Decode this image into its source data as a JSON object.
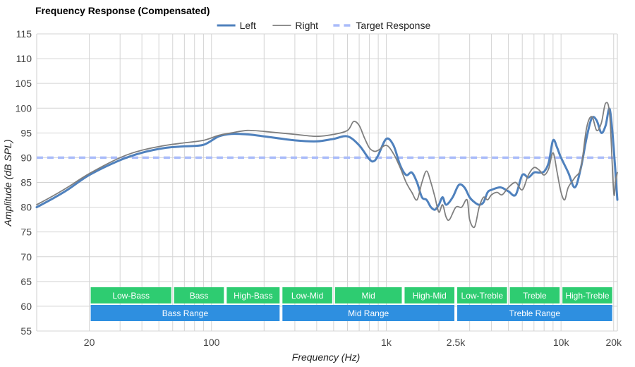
{
  "chart_data": {
    "type": "line",
    "title": "Frequency Response (Compensated)",
    "xlabel": "Frequency (Hz)",
    "ylabel": "Amplitude (dB SPL)",
    "xscale": "log",
    "xlim": [
      10,
      21000
    ],
    "ylim": [
      55,
      115
    ],
    "y_ticks": [
      "55",
      "60",
      "65",
      "70",
      "75",
      "80",
      "85",
      "90",
      "95",
      "100",
      "105",
      "110",
      "115"
    ],
    "x_ticks": [
      {
        "value": 20,
        "label": "20"
      },
      {
        "value": 100,
        "label": "100"
      },
      {
        "value": 1000,
        "label": "1k"
      },
      {
        "value": 2500,
        "label": "2.5k"
      },
      {
        "value": 10000,
        "label": "10k"
      },
      {
        "value": 20000,
        "label": "20k"
      }
    ],
    "grid": true,
    "legend_position": "top-center",
    "series": [
      {
        "name": "Left",
        "color": "#4f81bd",
        "style": "solid-thick",
        "points": [
          [
            10,
            80
          ],
          [
            12,
            81.5
          ],
          [
            15,
            83.5
          ],
          [
            20,
            86.5
          ],
          [
            30,
            89.5
          ],
          [
            40,
            91
          ],
          [
            55,
            92
          ],
          [
            70,
            92.3
          ],
          [
            90,
            92.6
          ],
          [
            110,
            94.3
          ],
          [
            130,
            94.8
          ],
          [
            160,
            94.7
          ],
          [
            200,
            94.3
          ],
          [
            300,
            93.5
          ],
          [
            400,
            93.3
          ],
          [
            500,
            93.8
          ],
          [
            600,
            94.3
          ],
          [
            700,
            92.5
          ],
          [
            800,
            89.7
          ],
          [
            850,
            89.3
          ],
          [
            900,
            90.5
          ],
          [
            1000,
            93.8
          ],
          [
            1100,
            92.5
          ],
          [
            1200,
            88.5
          ],
          [
            1300,
            86.5
          ],
          [
            1400,
            87
          ],
          [
            1500,
            85
          ],
          [
            1600,
            82
          ],
          [
            1700,
            81.5
          ],
          [
            1800,
            80
          ],
          [
            1900,
            79.5
          ],
          [
            2000,
            80.5
          ],
          [
            2100,
            82
          ],
          [
            2200,
            80.5
          ],
          [
            2400,
            82
          ],
          [
            2600,
            84.5
          ],
          [
            2800,
            84
          ],
          [
            3000,
            82
          ],
          [
            3200,
            81
          ],
          [
            3400,
            80.5
          ],
          [
            3600,
            81
          ],
          [
            3800,
            83
          ],
          [
            4000,
            83.5
          ],
          [
            4500,
            84
          ],
          [
            5000,
            83.2
          ],
          [
            5500,
            82.5
          ],
          [
            6000,
            86.5
          ],
          [
            6500,
            86
          ],
          [
            7000,
            87
          ],
          [
            7500,
            87
          ],
          [
            8000,
            87.2
          ],
          [
            8500,
            89
          ],
          [
            9000,
            93.5
          ],
          [
            9500,
            92
          ],
          [
            10000,
            90
          ],
          [
            11000,
            87
          ],
          [
            12000,
            84
          ],
          [
            13000,
            88
          ],
          [
            14000,
            94
          ],
          [
            15000,
            98
          ],
          [
            16000,
            97.5
          ],
          [
            17000,
            95
          ],
          [
            18000,
            96.5
          ],
          [
            19000,
            99.8
          ],
          [
            20000,
            92
          ],
          [
            21000,
            81.5
          ]
        ]
      },
      {
        "name": "Right",
        "color": "#7f7f7f",
        "style": "solid-thin",
        "points": [
          [
            10,
            80.5
          ],
          [
            12,
            82
          ],
          [
            15,
            84
          ],
          [
            20,
            86.8
          ],
          [
            30,
            90
          ],
          [
            40,
            91.5
          ],
          [
            55,
            92.5
          ],
          [
            70,
            93
          ],
          [
            90,
            93.5
          ],
          [
            110,
            94.5
          ],
          [
            130,
            95
          ],
          [
            160,
            95.5
          ],
          [
            200,
            95.3
          ],
          [
            300,
            94.7
          ],
          [
            400,
            94.3
          ],
          [
            500,
            94.7
          ],
          [
            600,
            95.5
          ],
          [
            650,
            97.3
          ],
          [
            700,
            96.5
          ],
          [
            750,
            94
          ],
          [
            800,
            92
          ],
          [
            850,
            91.3
          ],
          [
            900,
            91.5
          ],
          [
            1000,
            92.5
          ],
          [
            1100,
            90.8
          ],
          [
            1200,
            88
          ],
          [
            1300,
            85
          ],
          [
            1400,
            83
          ],
          [
            1500,
            81.5
          ],
          [
            1600,
            85
          ],
          [
            1700,
            87.3
          ],
          [
            1800,
            85
          ],
          [
            1900,
            82
          ],
          [
            2000,
            79
          ],
          [
            2100,
            80.5
          ],
          [
            2200,
            78
          ],
          [
            2300,
            77.5
          ],
          [
            2500,
            80
          ],
          [
            2700,
            80
          ],
          [
            2900,
            81.5
          ],
          [
            3000,
            77.5
          ],
          [
            3200,
            76
          ],
          [
            3400,
            80
          ],
          [
            3600,
            82
          ],
          [
            3800,
            81.5
          ],
          [
            4000,
            82.5
          ],
          [
            4300,
            83
          ],
          [
            4600,
            82.5
          ],
          [
            5000,
            84
          ],
          [
            5500,
            85
          ],
          [
            6000,
            83.5
          ],
          [
            6500,
            86.5
          ],
          [
            7000,
            88
          ],
          [
            7500,
            87.5
          ],
          [
            8000,
            86.5
          ],
          [
            8500,
            87.8
          ],
          [
            9000,
            91
          ],
          [
            9500,
            87
          ],
          [
            10000,
            83
          ],
          [
            10500,
            81.5
          ],
          [
            11000,
            84
          ],
          [
            12000,
            86
          ],
          [
            13000,
            88
          ],
          [
            14000,
            96
          ],
          [
            15000,
            98.3
          ],
          [
            16000,
            95.5
          ],
          [
            17000,
            97
          ],
          [
            18000,
            101
          ],
          [
            19000,
            98.5
          ],
          [
            20000,
            83
          ],
          [
            20500,
            85.5
          ],
          [
            21000,
            87
          ]
        ]
      },
      {
        "name": "Target Response",
        "color": "#aabcfa",
        "style": "dashed",
        "points": [
          [
            10,
            90
          ],
          [
            21000,
            90
          ]
        ]
      }
    ],
    "bands": [
      {
        "label": "Low-Bass",
        "from": 20,
        "to": 60,
        "row": 1,
        "color": "#2ecc71"
      },
      {
        "label": "Bass",
        "from": 60,
        "to": 120,
        "row": 1,
        "color": "#2ecc71"
      },
      {
        "label": "High-Bass",
        "from": 120,
        "to": 250,
        "row": 1,
        "color": "#2ecc71"
      },
      {
        "label": "Low-Mid",
        "from": 250,
        "to": 500,
        "row": 1,
        "color": "#2ecc71"
      },
      {
        "label": "Mid",
        "from": 500,
        "to": 1250,
        "row": 1,
        "color": "#2ecc71"
      },
      {
        "label": "High-Mid",
        "from": 1250,
        "to": 2500,
        "row": 1,
        "color": "#2ecc71"
      },
      {
        "label": "Low-Treble",
        "from": 2500,
        "to": 5000,
        "row": 1,
        "color": "#2ecc71"
      },
      {
        "label": "Treble",
        "from": 5000,
        "to": 10000,
        "row": 1,
        "color": "#2ecc71"
      },
      {
        "label": "High-Treble",
        "from": 10000,
        "to": 20000,
        "row": 1,
        "color": "#2ecc71"
      },
      {
        "label": "Bass Range",
        "from": 20,
        "to": 250,
        "row": 2,
        "color": "#2e8fe0"
      },
      {
        "label": "Mid Range",
        "from": 250,
        "to": 2500,
        "row": 2,
        "color": "#2e8fe0"
      },
      {
        "label": "Treble Range",
        "from": 2500,
        "to": 20000,
        "row": 2,
        "color": "#2e8fe0"
      }
    ]
  }
}
